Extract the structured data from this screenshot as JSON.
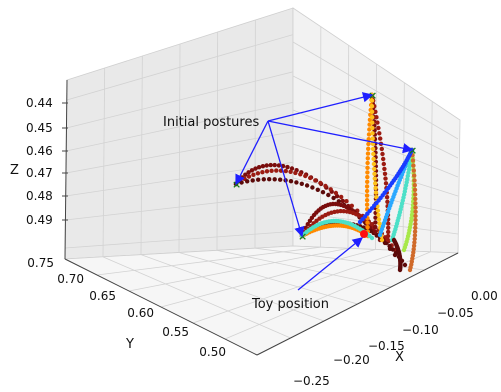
{
  "chart_data": {
    "type": "scatter",
    "projection": "3d",
    "title": "",
    "xlabel": "X",
    "ylabel": "Y",
    "zlabel": "Z",
    "xlim": [
      -0.25,
      0.0
    ],
    "ylim": [
      0.5,
      0.75
    ],
    "zlim": [
      0.435,
      0.495
    ],
    "x_ticks": [
      "0.00",
      "−0.05",
      "−0.10",
      "−0.15",
      "−0.20",
      "−0.25"
    ],
    "y_ticks": [
      "0.50",
      "0.55",
      "0.60",
      "0.65",
      "0.70",
      "0.75"
    ],
    "z_ticks": [
      "0.44",
      "0.45",
      "0.46",
      "0.47",
      "0.48",
      "0.49"
    ],
    "grid": true,
    "annotations": [
      {
        "text": "Initial postures"
      },
      {
        "text": "Toy position"
      }
    ],
    "colors": {
      "annotation_arrow": "#1f1fff",
      "start_marker": "#1a7a1a",
      "toy_marker": "#ff1010",
      "pane_left": "#e9e9e9",
      "pane_right": "#f2f2f2",
      "pane_floor": "#f6f6f6",
      "grid": "#d2d2d2"
    },
    "series_colors": [
      "#7a0d0d",
      "#9b1b12",
      "#5c0a0a",
      "#ff8a00",
      "#ffc21a",
      "#2aa8ff",
      "#4de0c8",
      "#a8e84a",
      "#d06a2a",
      "#1a3cff"
    ]
  }
}
